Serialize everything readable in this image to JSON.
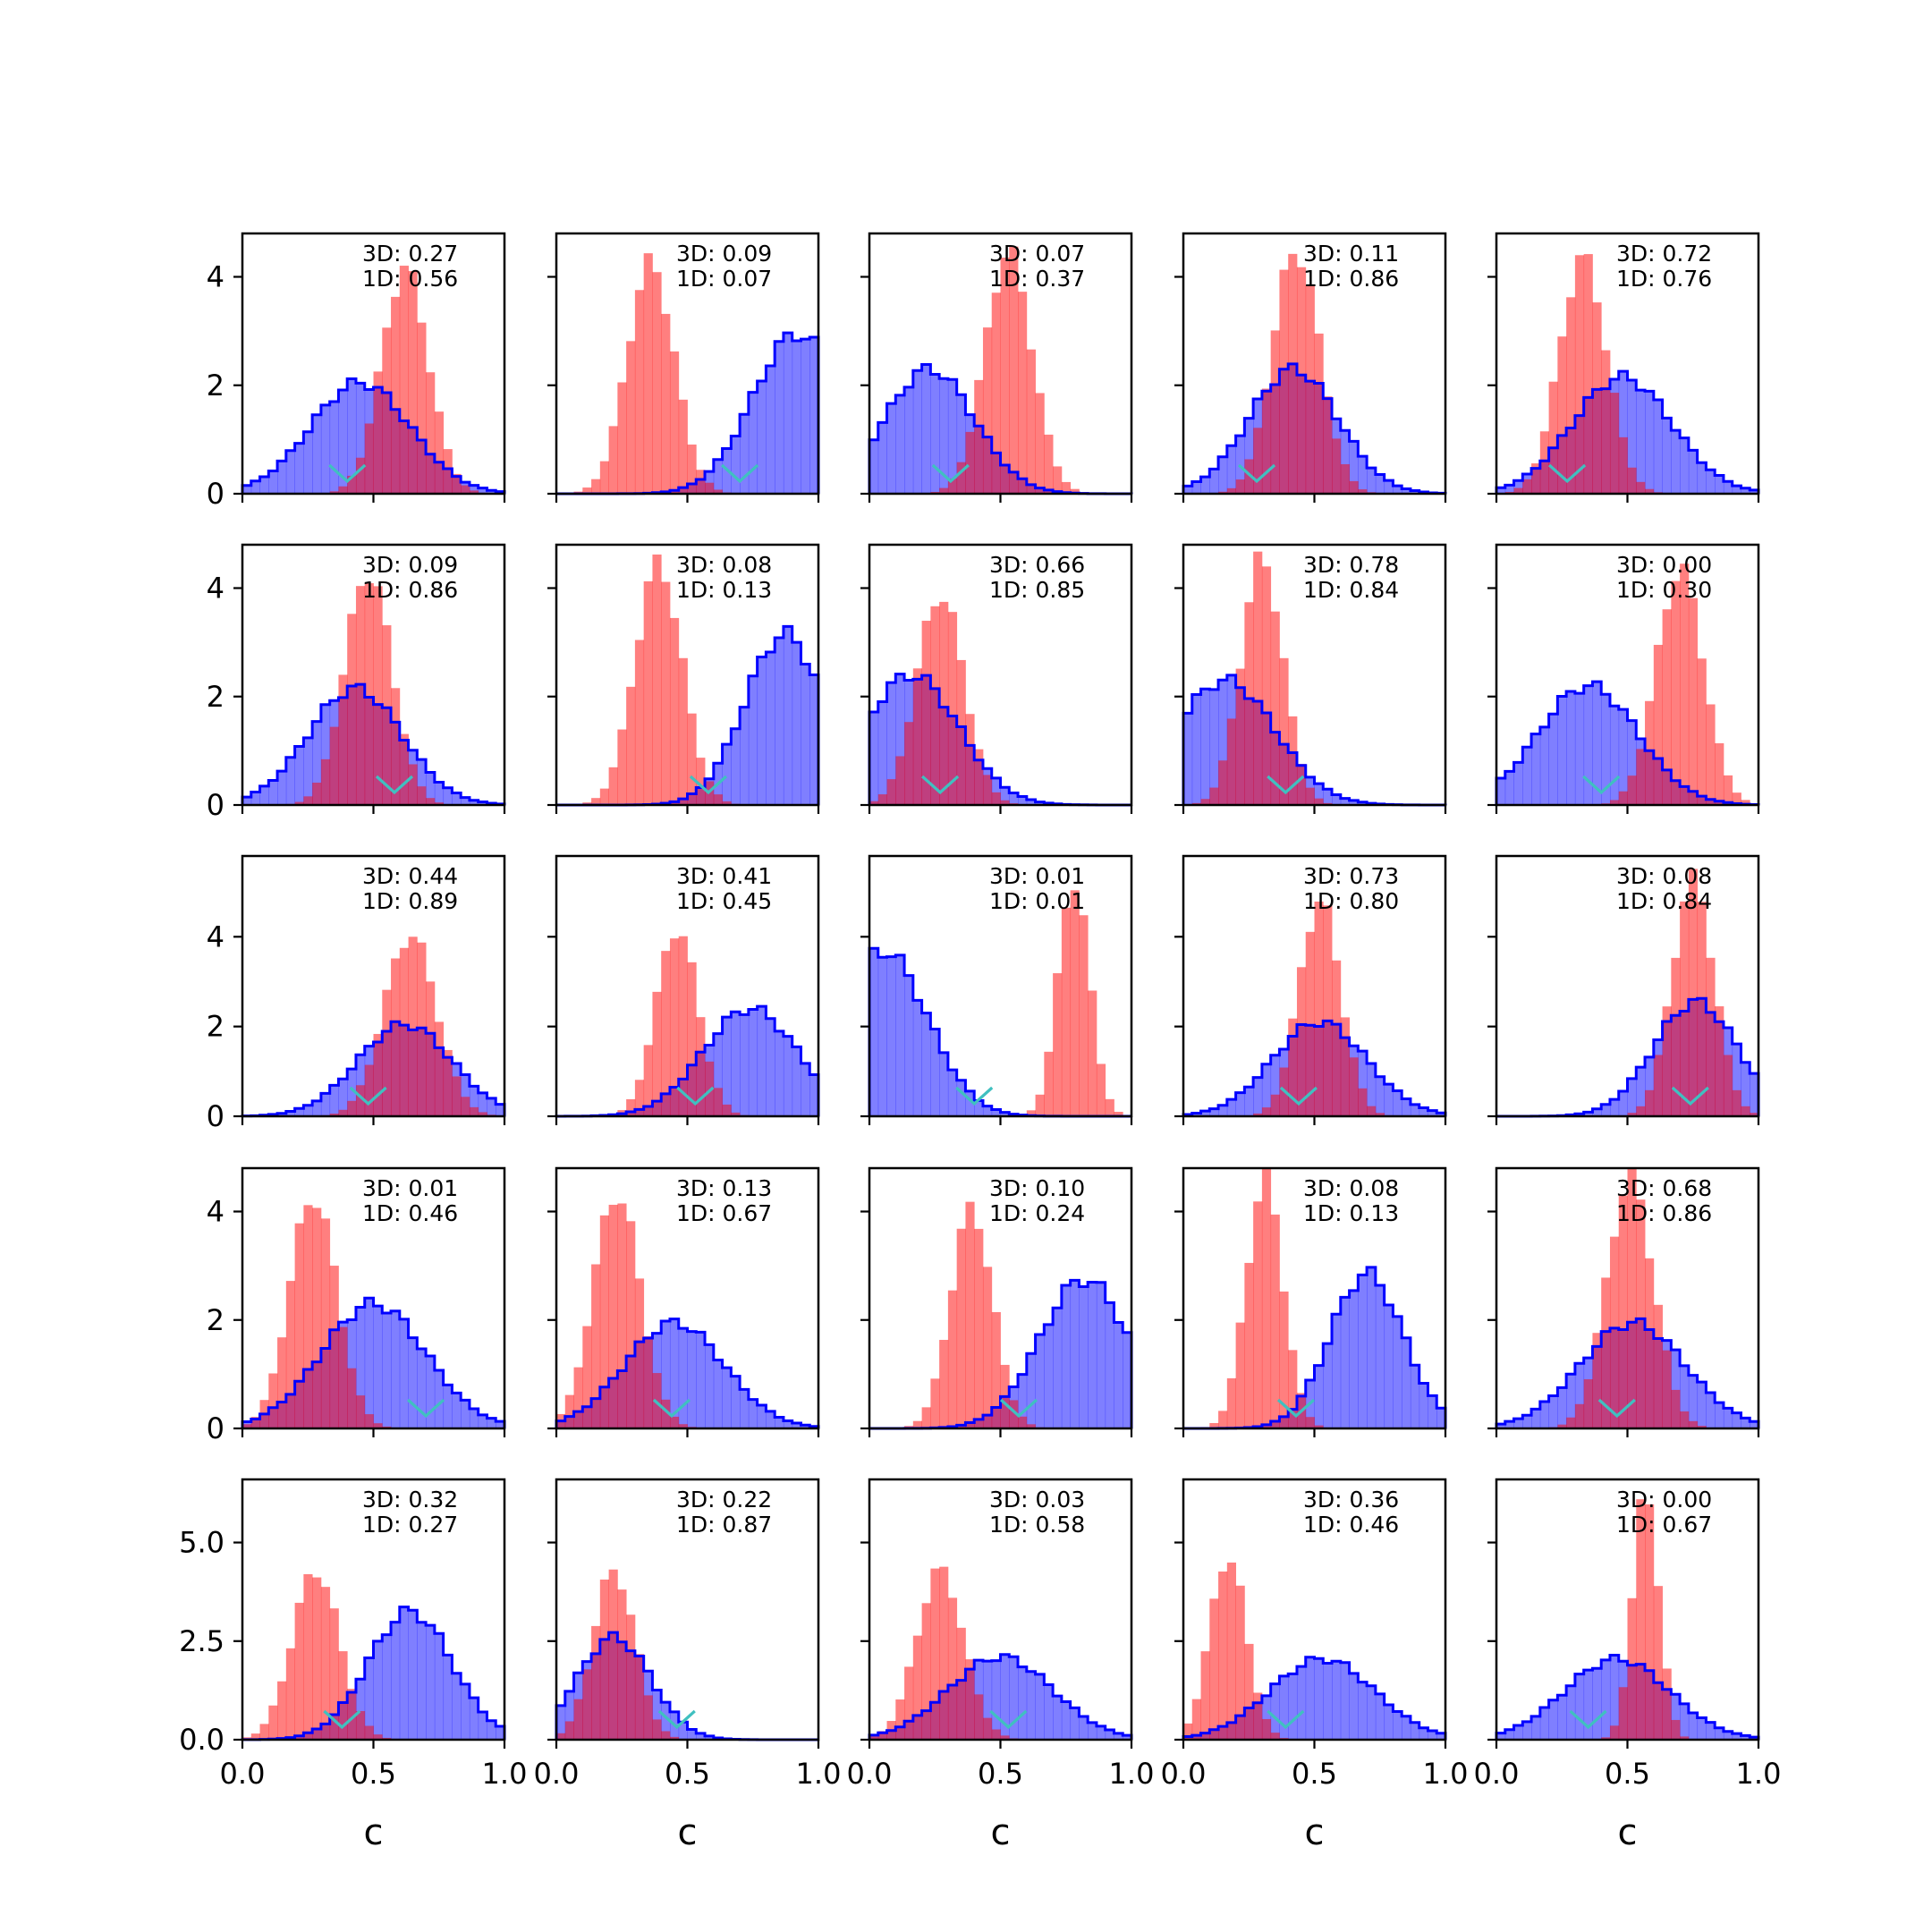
{
  "chart_data": {
    "type": "histogram-grid",
    "rows": 5,
    "cols": 5,
    "xlabel": "c",
    "xlim": [
      0.0,
      1.0
    ],
    "xticks": [
      "0.0",
      "0.5",
      "1.0"
    ],
    "colors": {
      "posterior": "#0000ff",
      "posterior_fill": "#8080ff",
      "prior": "#ff7f7f",
      "marker": "#40c0c0"
    },
    "row_axes": [
      {
        "ylim": [
          0,
          4.8
        ],
        "yticks": [
          {
            "v": 0,
            "label": "0"
          },
          {
            "v": 2,
            "label": "2"
          },
          {
            "v": 4,
            "label": "4"
          }
        ]
      },
      {
        "ylim": [
          0,
          4.8
        ],
        "yticks": [
          {
            "v": 0,
            "label": "0"
          },
          {
            "v": 2,
            "label": "2"
          },
          {
            "v": 4,
            "label": "4"
          }
        ]
      },
      {
        "ylim": [
          0,
          5.8
        ],
        "yticks": [
          {
            "v": 0,
            "label": "0"
          },
          {
            "v": 2,
            "label": "2"
          },
          {
            "v": 4,
            "label": "4"
          }
        ]
      },
      {
        "ylim": [
          0,
          4.8
        ],
        "yticks": [
          {
            "v": 0,
            "label": "0"
          },
          {
            "v": 2,
            "label": "2"
          },
          {
            "v": 4,
            "label": "4"
          }
        ]
      },
      {
        "ylim": [
          0,
          6.6
        ],
        "yticks": [
          {
            "v": 0,
            "label": "0.0"
          },
          {
            "v": 2.5,
            "label": "2.5"
          },
          {
            "v": 5,
            "label": "5.0"
          }
        ]
      }
    ],
    "panels": [
      {
        "ann3d": "3D: 0.27",
        "ann1d": "1D: 0.56",
        "marker": 0.4,
        "blue": {
          "mu": 0.45,
          "sd": 0.19,
          "peak": 2.05
        },
        "red": {
          "mu": 0.62,
          "sd": 0.09,
          "peak": 4.15
        }
      },
      {
        "ann3d": "3D: 0.09",
        "ann1d": "1D: 0.07",
        "marker": 0.7,
        "blue": {
          "mu": 0.92,
          "sd": 0.17,
          "peak": 2.95
        },
        "red": {
          "mu": 0.36,
          "sd": 0.09,
          "peak": 4.25
        }
      },
      {
        "ann3d": "3D: 0.07",
        "ann1d": "1D: 0.37",
        "marker": 0.31,
        "blue": {
          "mu": 0.23,
          "sd": 0.17,
          "peak": 2.3
        },
        "red": {
          "mu": 0.53,
          "sd": 0.09,
          "peak": 4.45
        }
      },
      {
        "ann3d": "3D: 0.11",
        "ann1d": "1D: 0.86",
        "marker": 0.28,
        "blue": {
          "mu": 0.42,
          "sd": 0.17,
          "peak": 2.3
        },
        "red": {
          "mu": 0.43,
          "sd": 0.09,
          "peak": 4.5
        }
      },
      {
        "ann3d": "3D: 0.72",
        "ann1d": "1D: 0.76",
        "marker": 0.27,
        "blue": {
          "mu": 0.48,
          "sd": 0.19,
          "peak": 2.15
        },
        "red": {
          "mu": 0.33,
          "sd": 0.09,
          "peak": 4.35
        }
      },
      {
        "ann3d": "3D: 0.09",
        "ann1d": "1D: 0.86",
        "marker": 0.58,
        "blue": {
          "mu": 0.43,
          "sd": 0.18,
          "peak": 2.15
        },
        "red": {
          "mu": 0.48,
          "sd": 0.09,
          "peak": 4.3
        }
      },
      {
        "ann3d": "3D: 0.08",
        "ann1d": "1D: 0.13",
        "marker": 0.58,
        "blue": {
          "mu": 0.87,
          "sd": 0.15,
          "peak": 3.15
        },
        "red": {
          "mu": 0.39,
          "sd": 0.09,
          "peak": 4.45
        }
      },
      {
        "ann3d": "3D: 0.66",
        "ann1d": "1D: 0.85",
        "marker": 0.27,
        "blue": {
          "mu": 0.16,
          "sd": 0.18,
          "peak": 2.4
        },
        "red": {
          "mu": 0.27,
          "sd": 0.09,
          "peak": 3.9
        }
      },
      {
        "ann3d": "3D: 0.78",
        "ann1d": "1D: 0.84",
        "marker": 0.39,
        "blue": {
          "mu": 0.16,
          "sd": 0.19,
          "peak": 2.3
        },
        "red": {
          "mu": 0.3,
          "sd": 0.08,
          "peak": 4.55
        }
      },
      {
        "ann3d": "3D: 0.00",
        "ann1d": "1D: 0.30",
        "marker": 0.4,
        "blue": {
          "mu": 0.35,
          "sd": 0.19,
          "peak": 2.2
        },
        "red": {
          "mu": 0.7,
          "sd": 0.09,
          "peak": 4.35
        }
      },
      {
        "ann3d": "3D: 0.44",
        "ann1d": "1D: 0.89",
        "marker": 0.48,
        "blue": {
          "mu": 0.62,
          "sd": 0.18,
          "peak": 2.05
        },
        "red": {
          "mu": 0.64,
          "sd": 0.1,
          "peak": 4.05
        }
      },
      {
        "ann3d": "3D: 0.41",
        "ann1d": "1D: 0.45",
        "marker": 0.53,
        "blue": {
          "mu": 0.74,
          "sd": 0.18,
          "peak": 2.4
        },
        "red": {
          "mu": 0.46,
          "sd": 0.08,
          "peak": 4.2
        }
      },
      {
        "ann3d": "3D: 0.01",
        "ann1d": "1D: 0.01",
        "marker": 0.4,
        "blue": {
          "mu": 0.05,
          "sd": 0.17,
          "peak": 3.7
        },
        "red": {
          "mu": 0.78,
          "sd": 0.06,
          "peak": 5.3
        }
      },
      {
        "ann3d": "3D: 0.73",
        "ann1d": "1D: 0.80",
        "marker": 0.44,
        "blue": {
          "mu": 0.52,
          "sd": 0.18,
          "peak": 2.1
        },
        "red": {
          "mu": 0.52,
          "sd": 0.08,
          "peak": 4.8
        }
      },
      {
        "ann3d": "3D: 0.08",
        "ann1d": "1D: 0.84",
        "marker": 0.74,
        "blue": {
          "mu": 0.76,
          "sd": 0.16,
          "peak": 2.55
        },
        "red": {
          "mu": 0.75,
          "sd": 0.08,
          "peak": 5.25
        }
      },
      {
        "ann3d": "3D: 0.01",
        "ann1d": "1D: 0.46",
        "marker": 0.7,
        "blue": {
          "mu": 0.5,
          "sd": 0.2,
          "peak": 2.3
        },
        "red": {
          "mu": 0.27,
          "sd": 0.09,
          "peak": 4.3
        }
      },
      {
        "ann3d": "3D: 0.13",
        "ann1d": "1D: 0.67",
        "marker": 0.44,
        "blue": {
          "mu": 0.45,
          "sd": 0.19,
          "peak": 1.95
        },
        "red": {
          "mu": 0.23,
          "sd": 0.09,
          "peak": 4.35
        }
      },
      {
        "ann3d": "3D: 0.10",
        "ann1d": "1D: 0.24",
        "marker": 0.57,
        "blue": {
          "mu": 0.82,
          "sd": 0.17,
          "peak": 2.75
        },
        "red": {
          "mu": 0.39,
          "sd": 0.08,
          "peak": 4.05
        }
      },
      {
        "ann3d": "3D: 0.08",
        "ann1d": "1D: 0.13",
        "marker": 0.43,
        "blue": {
          "mu": 0.7,
          "sd": 0.14,
          "peak": 2.85
        },
        "red": {
          "mu": 0.31,
          "sd": 0.07,
          "peak": 4.6
        }
      },
      {
        "ann3d": "3D: 0.68",
        "ann1d": "1D: 0.86",
        "marker": 0.46,
        "blue": {
          "mu": 0.52,
          "sd": 0.2,
          "peak": 1.95
        },
        "red": {
          "mu": 0.51,
          "sd": 0.09,
          "peak": 4.6
        }
      },
      {
        "ann3d": "3D: 0.32",
        "ann1d": "1D: 0.27",
        "marker": 0.38,
        "blue": {
          "mu": 0.64,
          "sd": 0.16,
          "peak": 3.25
        },
        "red": {
          "mu": 0.28,
          "sd": 0.09,
          "peak": 4.3
        }
      },
      {
        "ann3d": "3D: 0.22",
        "ann1d": "1D: 0.87",
        "marker": 0.46,
        "blue": {
          "mu": 0.22,
          "sd": 0.14,
          "peak": 2.6
        },
        "red": {
          "mu": 0.22,
          "sd": 0.08,
          "peak": 4.3
        }
      },
      {
        "ann3d": "3D: 0.03",
        "ann1d": "1D: 0.58",
        "marker": 0.53,
        "blue": {
          "mu": 0.5,
          "sd": 0.2,
          "peak": 2.1
        },
        "red": {
          "mu": 0.27,
          "sd": 0.09,
          "peak": 4.3
        }
      },
      {
        "ann3d": "3D: 0.36",
        "ann1d": "1D: 0.46",
        "marker": 0.39,
        "blue": {
          "mu": 0.53,
          "sd": 0.2,
          "peak": 2.05
        },
        "red": {
          "mu": 0.17,
          "sd": 0.07,
          "peak": 4.65
        }
      },
      {
        "ann3d": "3D: 0.00",
        "ann1d": "1D: 0.67",
        "marker": 0.35,
        "blue": {
          "mu": 0.46,
          "sd": 0.2,
          "peak": 2.05
        },
        "red": {
          "mu": 0.57,
          "sd": 0.05,
          "peak": 6.3
        }
      }
    ]
  }
}
